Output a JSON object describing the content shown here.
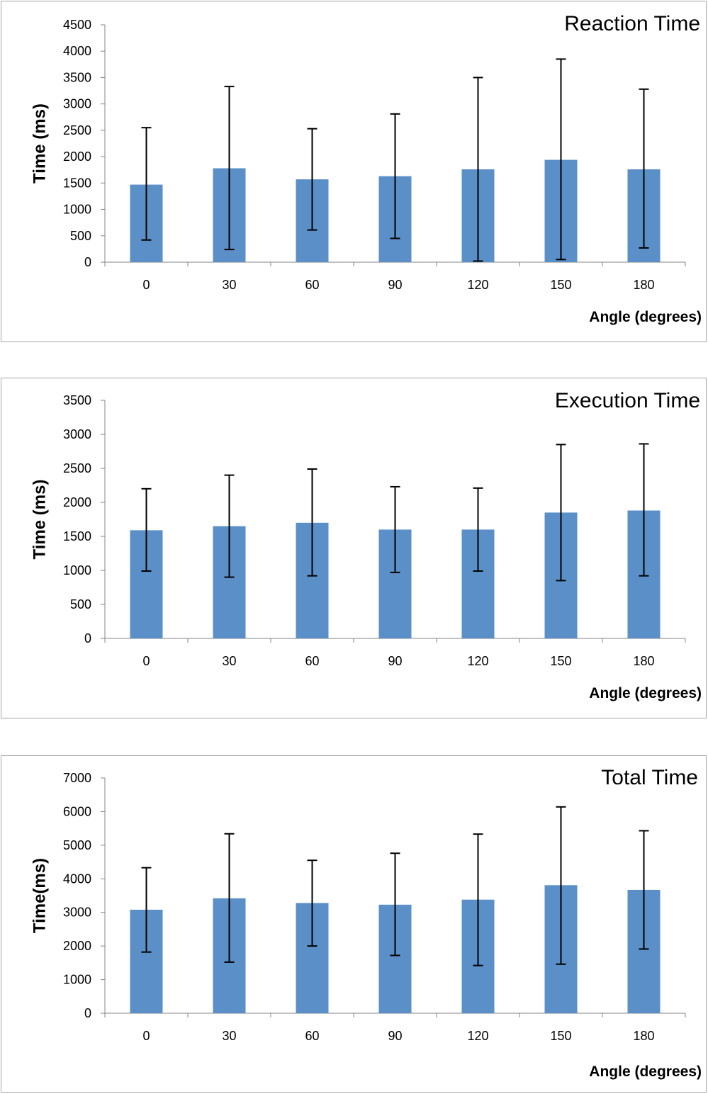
{
  "chart_data": [
    {
      "type": "bar",
      "title": "Reaction Time",
      "xlabel": "Angle (degrees)",
      "ylabel": "Time (ms)",
      "categories": [
        "0",
        "30",
        "60",
        "90",
        "120",
        "150",
        "180"
      ],
      "values": [
        1470,
        1780,
        1570,
        1630,
        1760,
        1940,
        1760
      ],
      "error_low": [
        420,
        240,
        610,
        450,
        20,
        50,
        270
      ],
      "error_high": [
        2550,
        3330,
        2530,
        2810,
        3500,
        3850,
        3280
      ],
      "ylim": [
        0,
        4500
      ],
      "yticks": [
        0,
        500,
        1000,
        1500,
        2000,
        2500,
        3000,
        3500,
        4000,
        4500
      ],
      "grid": false,
      "legend": "none",
      "colors": {
        "bar": "#5b8fc7",
        "error_bar": "#000000"
      }
    },
    {
      "type": "bar",
      "title": "Execution Time",
      "xlabel": "Angle (degrees)",
      "ylabel": "Time (ms)",
      "categories": [
        "0",
        "30",
        "60",
        "90",
        "120",
        "150",
        "180"
      ],
      "values": [
        1590,
        1650,
        1700,
        1600,
        1600,
        1850,
        1880
      ],
      "error_low": [
        990,
        900,
        920,
        970,
        990,
        850,
        920
      ],
      "error_high": [
        2200,
        2400,
        2490,
        2230,
        2210,
        2850,
        2860
      ],
      "ylim": [
        0,
        3500
      ],
      "yticks": [
        0,
        500,
        1000,
        1500,
        2000,
        2500,
        3000,
        3500
      ],
      "grid": false,
      "legend": "none",
      "colors": {
        "bar": "#5b8fc7",
        "error_bar": "#000000"
      }
    },
    {
      "type": "bar",
      "title": "Total Time",
      "xlabel": "Angle (degrees)",
      "ylabel": "Time(ms)",
      "categories": [
        "0",
        "30",
        "60",
        "90",
        "120",
        "150",
        "180"
      ],
      "values": [
        3080,
        3420,
        3280,
        3230,
        3380,
        3810,
        3670
      ],
      "error_low": [
        1820,
        1520,
        2000,
        1720,
        1420,
        1460,
        1910
      ],
      "error_high": [
        4330,
        5340,
        4550,
        4760,
        5330,
        6140,
        5430
      ],
      "ylim": [
        0,
        7000
      ],
      "yticks": [
        0,
        1000,
        2000,
        3000,
        4000,
        5000,
        6000,
        7000
      ],
      "grid": false,
      "legend": "none",
      "colors": {
        "bar": "#5b8fc7",
        "error_bar": "#000000"
      }
    }
  ]
}
